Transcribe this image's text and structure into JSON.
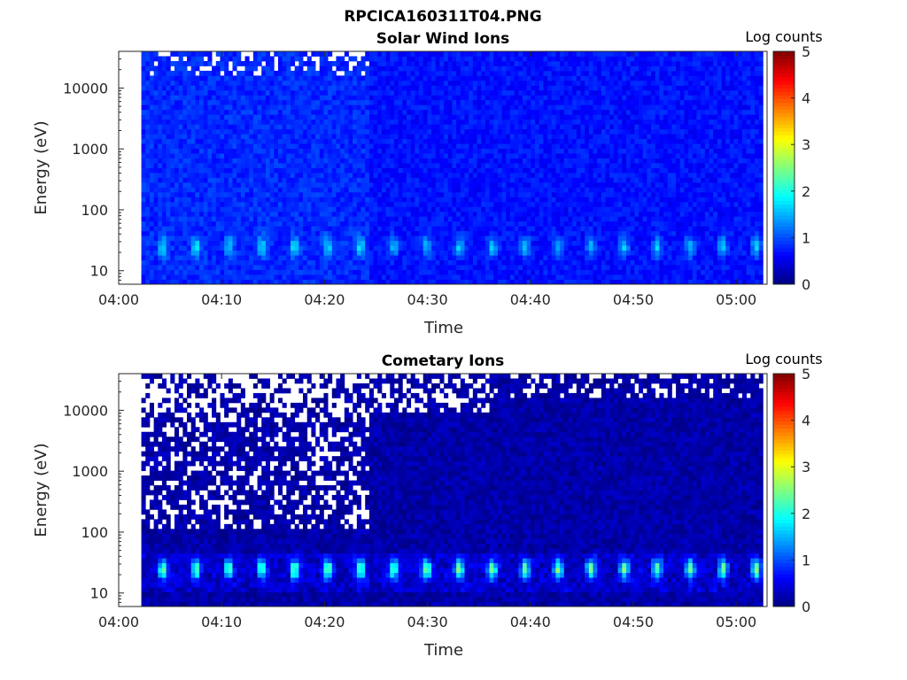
{
  "figure": {
    "title": "RPCICA160311T04.PNG",
    "colormap": [
      "#00007f",
      "#0000ff",
      "#007fff",
      "#00ffff",
      "#7fff7f",
      "#ffff00",
      "#ff7f00",
      "#ff0000",
      "#7f0000"
    ]
  },
  "chart_data": [
    {
      "type": "heatmap",
      "title": "Solar Wind Ions",
      "xlabel": "Time",
      "ylabel": "Energy (eV)",
      "x_ticks": [
        "04:00",
        "04:10",
        "04:20",
        "04:30",
        "04:40",
        "04:50",
        "05:00"
      ],
      "y_ticks": [
        "10",
        "100",
        "1000",
        "10000"
      ],
      "y_scale": "log",
      "ylim_ev": [
        6,
        40000
      ],
      "xlim_minutes": [
        0,
        63
      ],
      "data_start_minute": 2.2,
      "data_end_minute": 62.6,
      "colorbar": {
        "label": "Log counts",
        "ticks": [
          "0",
          "1",
          "2",
          "3",
          "4",
          "5"
        ],
        "range": [
          0,
          5
        ]
      },
      "features": {
        "background_log_counts": 0.7,
        "periodic_peak_energy_ev": 25,
        "periodic_peak_log_counts": 1.6,
        "periodic_peak_period_minutes": 3.2,
        "early_interval_end_minute": 24
      }
    },
    {
      "type": "heatmap",
      "title": "Cometary Ions",
      "xlabel": "Time",
      "ylabel": "Energy (eV)",
      "x_ticks": [
        "04:00",
        "04:10",
        "04:20",
        "04:30",
        "04:40",
        "04:50",
        "05:00"
      ],
      "y_ticks": [
        "10",
        "100",
        "1000",
        "10000"
      ],
      "y_scale": "log",
      "ylim_ev": [
        6,
        40000
      ],
      "xlim_minutes": [
        0,
        63
      ],
      "data_start_minute": 2.2,
      "data_end_minute": 62.6,
      "colorbar": {
        "label": "Log counts",
        "ticks": [
          "0",
          "1",
          "2",
          "3",
          "4",
          "5"
        ],
        "range": [
          0,
          5
        ]
      },
      "features": {
        "background_log_counts": 0.2,
        "periodic_peak_energy_ev": 25,
        "periodic_peak_log_counts": 2.3,
        "periodic_peak_period_minutes": 3.2,
        "early_interval_end_minute": 24
      }
    }
  ]
}
